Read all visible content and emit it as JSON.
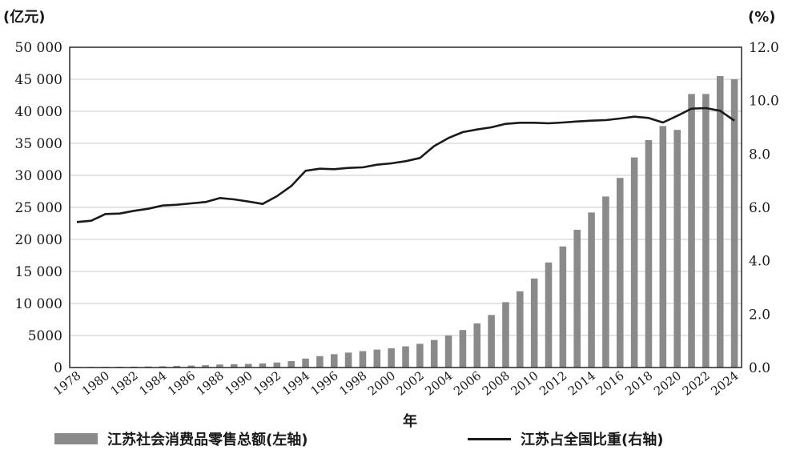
{
  "chart_data": {
    "type": "bar+line",
    "x": [
      "1978",
      "1979",
      "1980",
      "1981",
      "1982",
      "1983",
      "1984",
      "1985",
      "1986",
      "1987",
      "1988",
      "1989",
      "1990",
      "1991",
      "1992",
      "1993",
      "1994",
      "1995",
      "1996",
      "1997",
      "1998",
      "1999",
      "2000",
      "2001",
      "2002",
      "2003",
      "2004",
      "2005",
      "2006",
      "2007",
      "2008",
      "2009",
      "2010",
      "2011",
      "2012",
      "2013",
      "2014",
      "2015",
      "2016",
      "2017",
      "2018",
      "2019",
      "2020",
      "2021",
      "2022",
      "2023",
      "2024"
    ],
    "xtick_labels": [
      "1978",
      "1980",
      "1982",
      "1984",
      "1986",
      "1988",
      "1990",
      "1992",
      "1994",
      "1996",
      "1998",
      "2000",
      "2002",
      "2004",
      "2006",
      "2008",
      "2010",
      "2012",
      "2014",
      "2016",
      "2018",
      "2020",
      "2022",
      "2024"
    ],
    "xlabel": "年",
    "left_axis": {
      "unit": "(亿元)",
      "ylim": [
        0,
        50000
      ],
      "ticks": [
        "0",
        "5000",
        "10 000",
        "15 000",
        "20 000",
        "25 000",
        "30 000",
        "35 000",
        "40 000",
        "45 000",
        "50 000"
      ]
    },
    "right_axis": {
      "unit": "(%)",
      "ylim": [
        0,
        12
      ],
      "ticks": [
        "0.0",
        "2.0",
        "4.0",
        "6.0",
        "8.0",
        "10.0",
        "12.0"
      ]
    },
    "series": [
      {
        "name": "江苏社会消费品零售总额(左轴)",
        "type": "bar",
        "axis": "left",
        "color": "#8a8a8a",
        "values": [
          86,
          95,
          112,
          128,
          140,
          158,
          195,
          260,
          300,
          360,
          470,
          520,
          560,
          640,
          780,
          1000,
          1400,
          1780,
          2080,
          2330,
          2560,
          2800,
          3000,
          3300,
          3700,
          4300,
          5000,
          5850,
          6900,
          8200,
          10200,
          11900,
          13900,
          16400,
          18900,
          21500,
          24200,
          26700,
          29600,
          32800,
          35500,
          37700,
          37100,
          42700,
          42700,
          45500,
          45000
        ]
      },
      {
        "name": "江苏占全国比重(右轴)",
        "type": "line",
        "axis": "right",
        "color": "#1a1a1a",
        "values": [
          5.45,
          5.5,
          5.75,
          5.77,
          5.87,
          5.95,
          6.07,
          6.1,
          6.15,
          6.2,
          6.35,
          6.3,
          6.22,
          6.13,
          6.42,
          6.8,
          7.37,
          7.45,
          7.43,
          7.48,
          7.5,
          7.6,
          7.65,
          7.73,
          7.85,
          8.3,
          8.6,
          8.82,
          8.92,
          9.0,
          9.13,
          9.17,
          9.17,
          9.15,
          9.18,
          9.22,
          9.25,
          9.27,
          9.33,
          9.4,
          9.35,
          9.18,
          9.43,
          9.7,
          9.72,
          9.62,
          9.25
        ]
      }
    ],
    "grid": true,
    "legend_position": "bottom"
  }
}
